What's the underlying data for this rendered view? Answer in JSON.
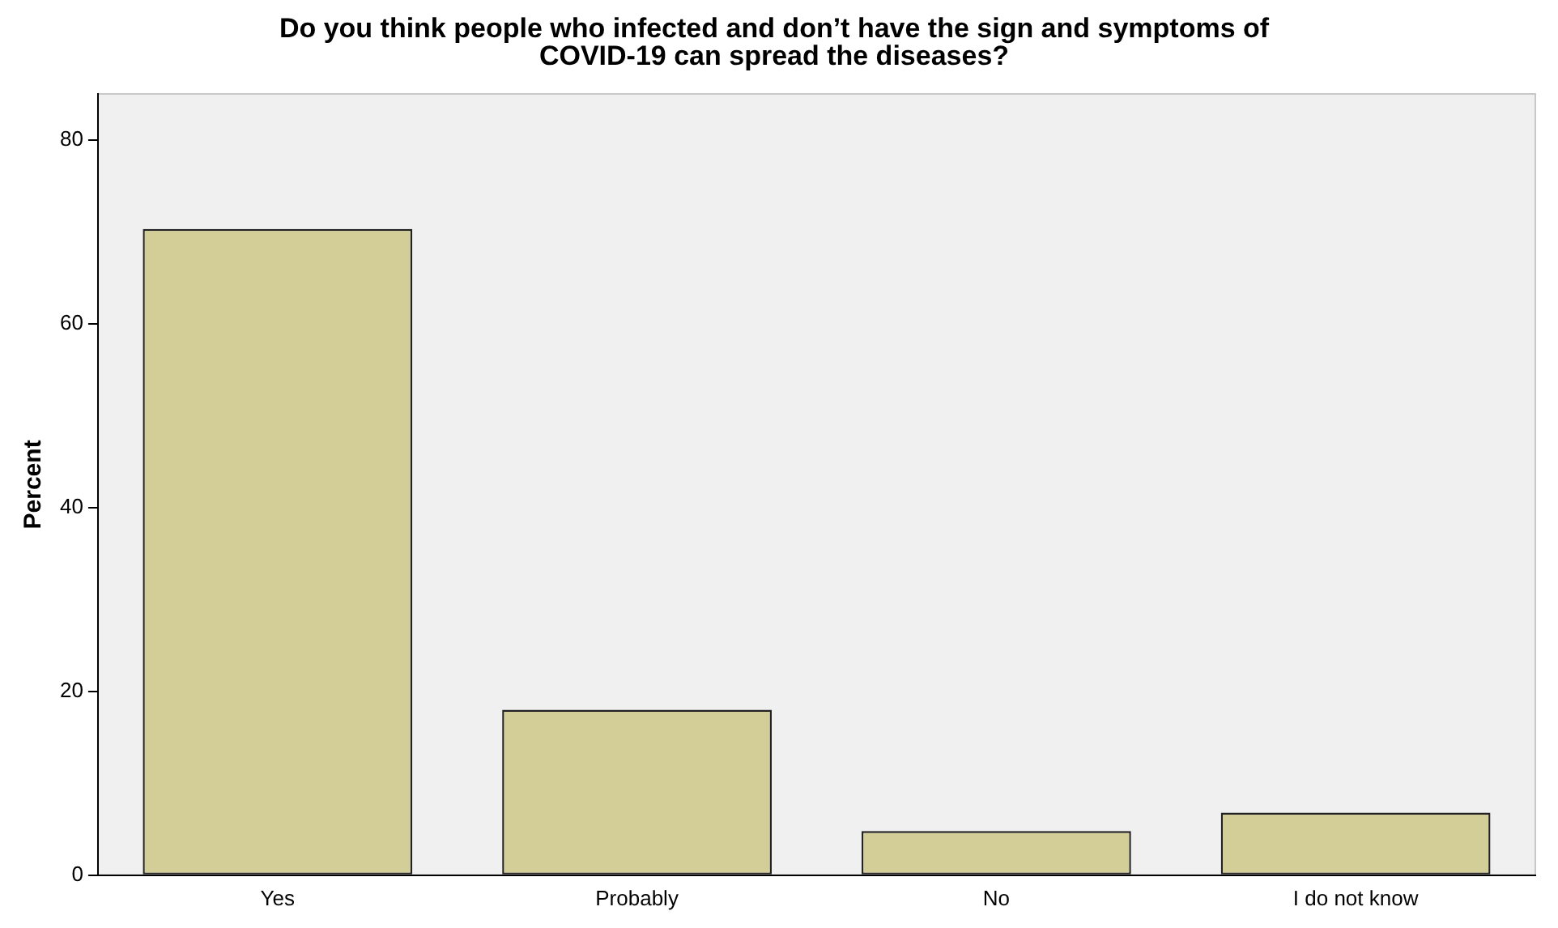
{
  "chart_data": {
    "type": "bar",
    "title": "Do you think people who infected and don’t have the sign and symptoms of COVID-19 can spread the diseases?",
    "ylabel": "Percent",
    "categories": [
      "Yes",
      "Probably",
      "No",
      "I do not know"
    ],
    "values": [
      70.3,
      18.0,
      4.8,
      6.8
    ],
    "color": "#d3ce97",
    "ylim": [
      0,
      85
    ],
    "yticks": [
      0,
      20,
      40,
      60,
      80
    ],
    "grid": false,
    "legend": false
  }
}
